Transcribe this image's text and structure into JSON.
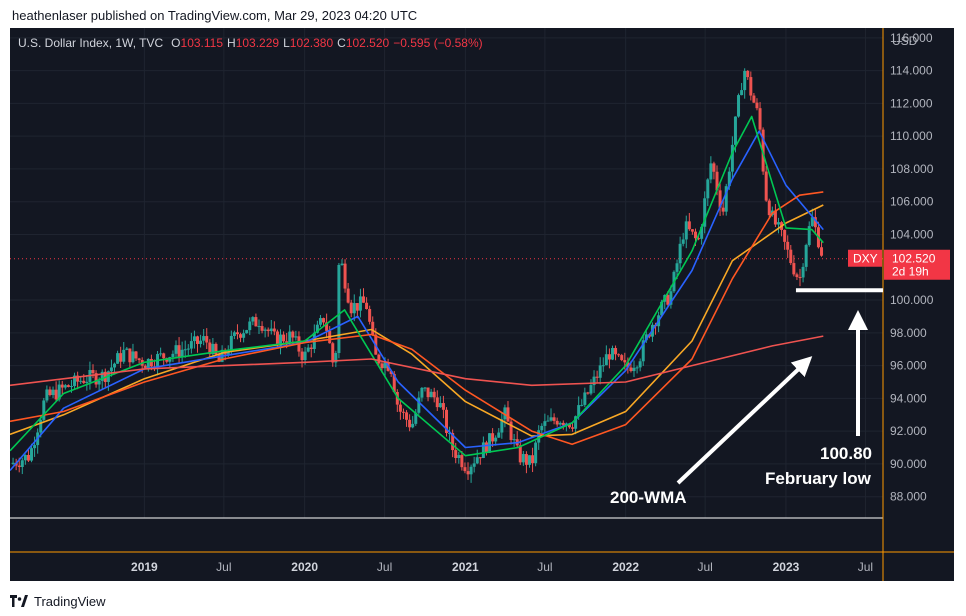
{
  "header": {
    "text": "heathenlaser published on TradingView.com, Mar 29, 2023 04:20 UTC"
  },
  "footer": {
    "brand": "TradingView"
  },
  "chart_data": {
    "type": "candlestick",
    "symbol_line": {
      "name": "U.S. Dollar Index, 1W, TVC",
      "o_label": "O",
      "o": "103.115",
      "h_label": "H",
      "h": "103.229",
      "l_label": "L",
      "l": "102.380",
      "c_label": "C",
      "c": "102.520",
      "change": "−0.595 (−0.58%)"
    },
    "currency": "USD",
    "y_range": [
      86.7,
      116.6
    ],
    "y_ticks": [
      "116.000",
      "114.000",
      "112.000",
      "110.000",
      "108.000",
      "106.000",
      "104.000",
      "100.000",
      "98.000",
      "96.000",
      "94.000",
      "92.000",
      "90.000",
      "88.000"
    ],
    "x_range": [
      "2018-03-01",
      "2023-08-10"
    ],
    "x_ticks": [
      {
        "label": "2019",
        "date": "2019-01-01",
        "bold": true
      },
      {
        "label": "Jul",
        "date": "2019-07-01",
        "bold": false
      },
      {
        "label": "2020",
        "date": "2020-01-01",
        "bold": true
      },
      {
        "label": "Jul",
        "date": "2020-07-01",
        "bold": false
      },
      {
        "label": "2021",
        "date": "2021-01-01",
        "bold": true
      },
      {
        "label": "Jul",
        "date": "2021-07-01",
        "bold": false
      },
      {
        "label": "2022",
        "date": "2022-01-01",
        "bold": true
      },
      {
        "label": "Jul",
        "date": "2022-07-01",
        "bold": false
      },
      {
        "label": "2023",
        "date": "2023-01-01",
        "bold": true
      },
      {
        "label": "Jul",
        "date": "2023-07-01",
        "bold": false
      }
    ],
    "price_label": {
      "ticker": "DXY",
      "price": "102.520",
      "countdown": "2d 19h"
    },
    "last_price": 102.52,
    "close_path": [
      [
        "2018-03-01",
        90.0
      ],
      [
        "2018-04-15",
        90.5
      ],
      [
        "2018-05-20",
        94.0
      ],
      [
        "2018-07-01",
        94.6
      ],
      [
        "2018-08-15",
        95.2
      ],
      [
        "2018-10-01",
        95.4
      ],
      [
        "2018-11-15",
        96.8
      ],
      [
        "2019-01-01",
        96.2
      ],
      [
        "2019-02-15",
        96.6
      ],
      [
        "2019-04-01",
        97.0
      ],
      [
        "2019-05-20",
        97.6
      ],
      [
        "2019-06-20",
        96.2
      ],
      [
        "2019-08-01",
        98.0
      ],
      [
        "2019-09-20",
        98.8
      ],
      [
        "2019-10-25",
        97.6
      ],
      [
        "2019-12-01",
        97.8
      ],
      [
        "2019-12-31",
        96.5
      ],
      [
        "2020-02-15",
        99.0
      ],
      [
        "2020-03-10",
        95.5
      ],
      [
        "2020-03-20",
        102.8
      ],
      [
        "2020-04-15",
        99.6
      ],
      [
        "2020-05-20",
        99.8
      ],
      [
        "2020-06-10",
        96.5
      ],
      [
        "2020-07-15",
        96.0
      ],
      [
        "2020-08-01",
        93.4
      ],
      [
        "2020-09-01",
        92.3
      ],
      [
        "2020-09-25",
        94.5
      ],
      [
        "2020-11-01",
        93.9
      ],
      [
        "2020-12-01",
        91.0
      ],
      [
        "2021-01-05",
        89.8
      ],
      [
        "2021-03-01",
        91.5
      ],
      [
        "2021-04-01",
        93.0
      ],
      [
        "2021-05-01",
        90.5
      ],
      [
        "2021-06-01",
        90.0
      ],
      [
        "2021-06-20",
        92.2
      ],
      [
        "2021-08-01",
        92.8
      ],
      [
        "2021-09-01",
        92.5
      ],
      [
        "2021-10-01",
        94.0
      ],
      [
        "2021-11-24",
        96.8
      ],
      [
        "2022-01-01",
        95.8
      ],
      [
        "2022-02-01",
        96.5
      ],
      [
        "2022-03-01",
        98.5
      ],
      [
        "2022-04-15",
        100.5
      ],
      [
        "2022-05-15",
        104.5
      ],
      [
        "2022-06-15",
        103.5
      ],
      [
        "2022-07-15",
        108.5
      ],
      [
        "2022-08-10",
        105.3
      ],
      [
        "2022-09-01",
        109.5
      ],
      [
        "2022-09-27",
        114.2
      ],
      [
        "2022-10-15",
        112.5
      ],
      [
        "2022-11-01",
        111.0
      ],
      [
        "2022-11-15",
        106.5
      ],
      [
        "2022-12-01",
        105.0
      ],
      [
        "2022-12-20",
        104.0
      ],
      [
        "2023-01-15",
        102.2
      ],
      [
        "2023-02-01",
        101.2
      ],
      [
        "2023-02-15",
        103.5
      ],
      [
        "2023-03-01",
        105.0
      ],
      [
        "2023-03-15",
        103.8
      ],
      [
        "2023-03-27",
        102.52
      ]
    ],
    "ma_lines": [
      {
        "color": "#f9a825",
        "points": [
          [
            "2018-03-01",
            91.8
          ],
          [
            "2018-07-01",
            93.0
          ],
          [
            "2019-01-01",
            95.2
          ],
          [
            "2019-07-01",
            96.8
          ],
          [
            "2020-01-01",
            97.5
          ],
          [
            "2020-06-01",
            98.2
          ],
          [
            "2020-09-01",
            96.7
          ],
          [
            "2021-01-01",
            93.8
          ],
          [
            "2021-06-01",
            91.7
          ],
          [
            "2021-09-01",
            91.8
          ],
          [
            "2022-01-01",
            93.2
          ],
          [
            "2022-06-01",
            97.5
          ],
          [
            "2022-09-01",
            102.4
          ],
          [
            "2023-01-01",
            104.7
          ],
          [
            "2023-03-27",
            105.8
          ]
        ]
      },
      {
        "color": "#2962ff",
        "points": [
          [
            "2018-03-01",
            89.6
          ],
          [
            "2018-07-01",
            93.4
          ],
          [
            "2019-01-01",
            95.8
          ],
          [
            "2019-07-01",
            96.6
          ],
          [
            "2020-01-01",
            97.4
          ],
          [
            "2020-05-01",
            99.0
          ],
          [
            "2020-08-01",
            95.0
          ],
          [
            "2021-01-01",
            91.0
          ],
          [
            "2021-05-01",
            91.3
          ],
          [
            "2021-09-01",
            92.5
          ],
          [
            "2022-01-01",
            95.7
          ],
          [
            "2022-06-01",
            101.8
          ],
          [
            "2022-09-01",
            107.4
          ],
          [
            "2022-11-01",
            110.3
          ],
          [
            "2023-01-01",
            107.0
          ],
          [
            "2023-03-27",
            104.3
          ]
        ]
      },
      {
        "color": "#ff5722",
        "points": [
          [
            "2018-03-01",
            92.6
          ],
          [
            "2018-07-01",
            93.2
          ],
          [
            "2019-01-01",
            95.0
          ],
          [
            "2019-07-01",
            96.4
          ],
          [
            "2020-01-01",
            97.4
          ],
          [
            "2020-06-01",
            97.9
          ],
          [
            "2020-09-01",
            97.0
          ],
          [
            "2021-01-01",
            94.5
          ],
          [
            "2021-06-01",
            92.0
          ],
          [
            "2021-09-01",
            91.2
          ],
          [
            "2022-01-01",
            92.4
          ],
          [
            "2022-06-01",
            96.4
          ],
          [
            "2022-09-01",
            101.3
          ],
          [
            "2022-12-01",
            105.3
          ],
          [
            "2023-02-01",
            106.4
          ],
          [
            "2023-03-27",
            106.6
          ]
        ]
      },
      {
        "color": "#00c853",
        "points": [
          [
            "2018-03-01",
            90.8
          ],
          [
            "2018-07-01",
            94.3
          ],
          [
            "2019-01-01",
            96.2
          ],
          [
            "2019-07-01",
            96.9
          ],
          [
            "2020-01-01",
            97.5
          ],
          [
            "2020-04-01",
            99.4
          ],
          [
            "2020-08-01",
            94.0
          ],
          [
            "2021-01-01",
            90.5
          ],
          [
            "2021-05-01",
            91.0
          ],
          [
            "2021-09-01",
            92.5
          ],
          [
            "2022-01-01",
            96.0
          ],
          [
            "2022-06-01",
            103.0
          ],
          [
            "2022-09-01",
            109.0
          ],
          [
            "2022-10-15",
            111.2
          ],
          [
            "2023-01-01",
            104.4
          ],
          [
            "2023-03-01",
            104.3
          ],
          [
            "2023-03-27",
            103.5
          ]
        ]
      },
      {
        "color": "#ef5350",
        "points": [
          [
            "2018-03-01",
            94.8
          ],
          [
            "2019-01-01",
            95.8
          ],
          [
            "2020-01-01",
            96.2
          ],
          [
            "2020-06-01",
            96.4
          ],
          [
            "2021-01-01",
            95.2
          ],
          [
            "2021-06-01",
            94.8
          ],
          [
            "2022-01-01",
            95.0
          ],
          [
            "2022-06-01",
            96.0
          ],
          [
            "2022-12-01",
            97.2
          ],
          [
            "2023-03-27",
            97.8
          ]
        ]
      }
    ],
    "support_line": {
      "price": 100.6,
      "from": "2023-01-01",
      "to": "2023-08-10"
    },
    "annotations": [
      {
        "id": "wma",
        "lines": [
          "200-WMA"
        ]
      },
      {
        "id": "feb-low",
        "lines": [
          "100.80",
          "February low"
        ]
      }
    ]
  }
}
